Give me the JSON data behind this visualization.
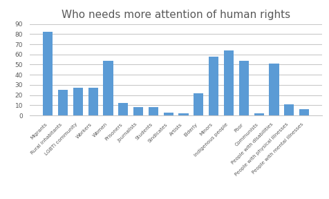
{
  "title": "Who needs more attention of human rights",
  "categories": [
    "Migrants",
    "Rural inhabitants",
    "LGBTI community",
    "Workers",
    "Women",
    "Prisoners",
    "Journalists",
    "Students",
    "Sindicates",
    "Artists",
    "Elderly",
    "Minors",
    "Indigenous people",
    "Poor",
    "Communists",
    "People with disabilities",
    "People with physical illnesses",
    "People with mental illnesses"
  ],
  "values": [
    82,
    25,
    27,
    27,
    54,
    12,
    8,
    8,
    3,
    2,
    22,
    58,
    64,
    54,
    2,
    51,
    11,
    6
  ],
  "bar_color": "#5B9BD5",
  "title_color": "#595959",
  "title_fontsize": 11,
  "ylim": [
    0,
    90
  ],
  "yticks": [
    0,
    10,
    20,
    30,
    40,
    50,
    60,
    70,
    80,
    90
  ],
  "grid_color": "#c8c8c8",
  "background_color": "#ffffff",
  "tick_label_fontsize": 5.2,
  "ytick_fontsize": 6.5
}
